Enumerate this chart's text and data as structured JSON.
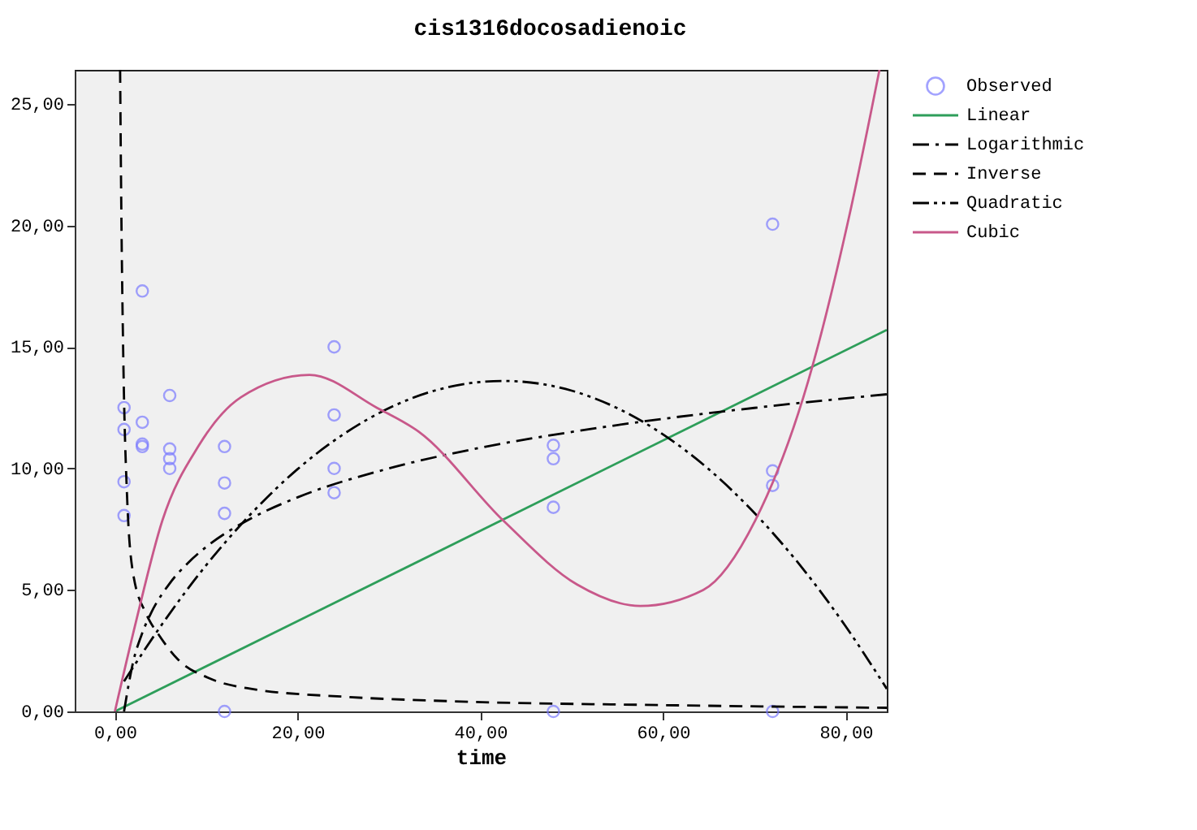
{
  "chart_data": {
    "type": "scatter",
    "title": "cis1316docosadienoic",
    "xlabel": "time",
    "legend": "right",
    "grid": false,
    "xlim": [
      -4.4,
      84.5
    ],
    "ylim": [
      0,
      26.4
    ],
    "xticks": [
      {
        "value": 0,
        "label": "0,00"
      },
      {
        "value": 20,
        "label": "20,00"
      },
      {
        "value": 40,
        "label": "40,00"
      },
      {
        "value": 60,
        "label": "60,00"
      },
      {
        "value": 80,
        "label": "80,00"
      }
    ],
    "yticks": [
      {
        "value": 0,
        "label": "0,00"
      },
      {
        "value": 5,
        "label": "5,00"
      },
      {
        "value": 10,
        "label": "10,00"
      },
      {
        "value": 15,
        "label": "15,00"
      },
      {
        "value": 20,
        "label": "20,00"
      },
      {
        "value": 25,
        "label": "25,00"
      }
    ],
    "series": [
      {
        "name": "Observed",
        "marker": "circle",
        "color": "#7b7bff",
        "x": [
          1,
          1,
          1,
          1,
          3,
          3,
          3,
          3,
          6,
          6,
          6,
          6,
          12,
          12,
          12,
          12,
          24,
          24,
          24,
          24,
          48,
          48,
          48,
          48,
          72,
          72,
          72,
          72
        ],
        "values": [
          12.5,
          11.6,
          9.45,
          8.06,
          17.3,
          11.9,
          11.0,
          10.9,
          13.0,
          10.8,
          10.4,
          10.0,
          10.9,
          9.4,
          8.15,
          0,
          15.0,
          12.2,
          10.0,
          9.0,
          10.95,
          10.4,
          8.4,
          0,
          20.05,
          9.9,
          9.3,
          0
        ]
      },
      {
        "name": "Linear",
        "type": "line",
        "line_style": "solid",
        "color": "#2e9e5a",
        "x": [
          0,
          84.5
        ],
        "values": [
          0,
          15.7
        ]
      },
      {
        "name": "Logarithmic",
        "type": "line",
        "line_style": "dashdot",
        "color": "#000000",
        "x": [
          1,
          2,
          3,
          4,
          6,
          8,
          10,
          15,
          20,
          30,
          40,
          50,
          60,
          70,
          84.5
        ],
        "values": [
          0,
          2.04,
          3.23,
          4.08,
          5.27,
          6.11,
          6.77,
          7.96,
          8.81,
          10.0,
          10.85,
          11.5,
          12.04,
          12.49,
          13.05
        ]
      },
      {
        "name": "Inverse",
        "type": "line",
        "line_style": "dashed",
        "color": "#000000",
        "x": [
          0.57,
          0.69,
          0.92,
          1.32,
          2.0,
          3.45,
          4.9,
          6.9,
          10.3,
          14.9,
          25.3,
          36.8,
          60,
          84.5
        ],
        "values": [
          26.4,
          21.1,
          14.5,
          8.96,
          5.66,
          4.0,
          3.1,
          2.14,
          1.37,
          0.93,
          0.6,
          0.42,
          0.26,
          0.15
        ]
      },
      {
        "name": "Quadratic",
        "type": "line",
        "line_style": "dashdotdot",
        "color": "#000000",
        "x": [
          1,
          5,
          10,
          15,
          20,
          25,
          30,
          35,
          42.5,
          50,
          55,
          60,
          65,
          70,
          75,
          80,
          84.5
        ],
        "values": [
          1.24,
          3.5,
          6.02,
          8.17,
          9.97,
          11.4,
          12.48,
          13.2,
          13.6,
          13.2,
          12.48,
          11.4,
          9.97,
          8.17,
          6.02,
          3.5,
          0.93
        ]
      },
      {
        "name": "Cubic",
        "type": "line",
        "line_style": "solid",
        "color": "#c8588a",
        "x": [
          0,
          2.3,
          5.2,
          9.2,
          13.8,
          21.3,
          28.7,
          33.3,
          42.5,
          50.6,
          57.5,
          64.4,
          70.1,
          75.9,
          80.4,
          83.7
        ],
        "values": [
          0,
          3.68,
          7.86,
          10.95,
          12.93,
          13.85,
          12.49,
          11.5,
          7.86,
          5.22,
          4.34,
          5.0,
          7.86,
          13.6,
          20.4,
          26.4
        ]
      }
    ]
  }
}
